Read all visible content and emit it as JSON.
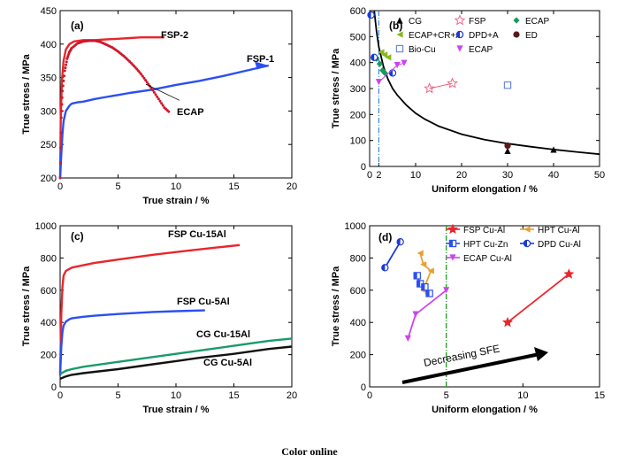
{
  "caption": "Color online",
  "chart_data": [
    {
      "type": "line",
      "panel_label": "(a)",
      "xlabel": "True strain / %",
      "ylabel": "True stress / MPa",
      "xlim": [
        0,
        20
      ],
      "ylim": [
        200,
        450
      ],
      "xticks": [
        0,
        5,
        10,
        15,
        20
      ],
      "yticks": [
        200,
        250,
        300,
        350,
        400,
        450
      ],
      "series": [
        {
          "name": "FSP-2",
          "color": "#e8262c",
          "style": "line",
          "x": [
            0,
            0.05,
            0.15,
            0.3,
            0.5,
            0.8,
            1.2,
            1.6,
            2,
            2.5,
            3,
            4,
            5,
            6,
            7,
            8,
            9
          ],
          "y": [
            200,
            290,
            345,
            375,
            392,
            400,
            404,
            405,
            406,
            406,
            406,
            407,
            408,
            409,
            410,
            410,
            410
          ]
        },
        {
          "name": "FSP-1",
          "color": "#2b4ff2",
          "style": "line",
          "x": [
            0,
            0.1,
            0.2,
            0.3,
            0.5,
            0.8,
            1,
            1.5,
            2,
            3,
            4,
            5,
            6,
            8,
            10,
            12,
            14,
            16,
            18
          ],
          "y": [
            200,
            235,
            265,
            285,
            300,
            308,
            311,
            313,
            314,
            318,
            321,
            324,
            327,
            332,
            339,
            345,
            352,
            360,
            368
          ]
        },
        {
          "name": "ECAP",
          "color": "#d0162a",
          "style": "dotted",
          "x": [
            0,
            0.1,
            0.2,
            0.4,
            0.6,
            0.8,
            1,
            1.5,
            2,
            2.5,
            3,
            3.5,
            4,
            4.5,
            5,
            5.5,
            6,
            6.5,
            7,
            7.5,
            8,
            8.5,
            9,
            9.5
          ],
          "y": [
            200,
            290,
            330,
            360,
            378,
            388,
            394,
            401,
            404,
            405,
            405,
            403,
            399,
            395,
            389,
            382,
            374,
            365,
            355,
            343,
            331,
            318,
            305,
            297
          ]
        }
      ],
      "annotations": [
        "FSP-2",
        "FSP-1",
        "ECAP"
      ]
    },
    {
      "type": "scatter",
      "panel_label": "(b)",
      "xlabel": "Uniform elongation / %",
      "ylabel": "True stress / MPa",
      "xlim": [
        0,
        50
      ],
      "ylim": [
        0,
        600
      ],
      "xticks": [
        0,
        2,
        10,
        20,
        30,
        40,
        50
      ],
      "yticks": [
        0,
        100,
        200,
        300,
        400,
        500,
        600
      ],
      "legend": [
        "CG",
        "FSP",
        "ECAP",
        "ECAP+CR+A",
        "DPD+A",
        "ED",
        "Bio-Cu",
        "ECAP"
      ],
      "series": [
        {
          "name": "CG",
          "marker": "triangle",
          "color": "#000000",
          "x": [
            30,
            40
          ],
          "y": [
            60,
            65
          ]
        },
        {
          "name": "FSP",
          "marker": "star-open",
          "color": "#ee6688",
          "x": [
            13,
            18
          ],
          "y": [
            300,
            320
          ]
        },
        {
          "name": "ECAP",
          "marker": "diamond",
          "color": "#1a9a5a",
          "x": [
            1.5,
            2.2,
            2.8,
            3.3
          ],
          "y": [
            415,
            395,
            370,
            360
          ]
        },
        {
          "name": "ECAP+CR+A",
          "marker": "triangle-left",
          "color": "#88b820",
          "x": [
            2.5,
            3.2,
            4
          ],
          "y": [
            440,
            430,
            420
          ]
        },
        {
          "name": "DPD+A",
          "marker": "circle-half",
          "color": "#1a3ad8",
          "x": [
            0.3,
            1,
            5
          ],
          "y": [
            583,
            420,
            360
          ]
        },
        {
          "name": "ED",
          "marker": "circle",
          "color": "#5a1a1a",
          "x": [
            30
          ],
          "y": [
            80
          ]
        },
        {
          "name": "Bio-Cu",
          "marker": "square-open",
          "color": "#6a8ad8",
          "x": [
            30
          ],
          "y": [
            313
          ]
        },
        {
          "name": "ECAP",
          "marker": "triangle-down",
          "color": "#cc44ee",
          "x": [
            2,
            6,
            7.5
          ],
          "y": [
            325,
            390,
            398
          ]
        }
      ],
      "fit_curve": {
        "color": "#000000",
        "x": [
          1,
          1.5,
          2,
          3,
          4,
          5,
          6,
          8,
          10,
          12,
          15,
          20,
          25,
          30,
          35,
          40,
          45,
          50
        ],
        "y": [
          640,
          520,
          460,
          385,
          335,
          300,
          275,
          236,
          205,
          182,
          155,
          124,
          103,
          88,
          76,
          65,
          56,
          47
        ]
      },
      "vline": {
        "x": 2,
        "color": "#3a8ad8"
      }
    },
    {
      "type": "line",
      "panel_label": "(c)",
      "xlabel": "True strain / %",
      "ylabel": "True stress / MPa",
      "xlim": [
        0,
        20
      ],
      "ylim": [
        0,
        1000
      ],
      "xticks": [
        0,
        5,
        10,
        15,
        20
      ],
      "yticks": [
        0,
        200,
        400,
        600,
        800,
        1000
      ],
      "series": [
        {
          "name": "FSP Cu-15Al",
          "color": "#e8262c",
          "x": [
            0,
            0.1,
            0.2,
            0.3,
            0.5,
            1,
            2,
            3,
            5,
            8,
            11,
            13.5,
            15.5
          ],
          "y": [
            80,
            450,
            620,
            690,
            720,
            740,
            755,
            770,
            790,
            820,
            845,
            865,
            880
          ]
        },
        {
          "name": "FSP Cu-5Al",
          "color": "#2b4ff2",
          "x": [
            0,
            0.1,
            0.2,
            0.3,
            0.5,
            0.8,
            1,
            2,
            3,
            5,
            8,
            10,
            12.5
          ],
          "y": [
            70,
            250,
            340,
            380,
            405,
            420,
            425,
            435,
            442,
            452,
            465,
            470,
            475
          ]
        },
        {
          "name": "CG Cu-15Al",
          "color": "#1a9a6a",
          "x": [
            0,
            0.5,
            1,
            2,
            5,
            8,
            10,
            12,
            15,
            18,
            20
          ],
          "y": [
            80,
            100,
            110,
            125,
            155,
            185,
            205,
            225,
            255,
            285,
            300
          ]
        },
        {
          "name": "CG Cu-5Al",
          "color": "#111111",
          "x": [
            0,
            0.5,
            1,
            2,
            5,
            8,
            10,
            12,
            15,
            18,
            20
          ],
          "y": [
            50,
            65,
            75,
            85,
            110,
            140,
            160,
            180,
            205,
            235,
            250
          ]
        }
      ],
      "annotations": [
        "FSP Cu-15Al",
        "FSP Cu-5Al",
        "CG Cu-15Al",
        "CG Cu-5Al"
      ]
    },
    {
      "type": "scatter",
      "panel_label": "(d)",
      "xlabel": "Uniform elongation / %",
      "ylabel": "True stress / MPa",
      "xlim": [
        0,
        15
      ],
      "ylim": [
        0,
        1000
      ],
      "xticks": [
        0,
        5,
        10,
        15
      ],
      "yticks": [
        0,
        200,
        400,
        600,
        800,
        1000
      ],
      "legend": [
        "FSP Cu-Al",
        "HPT Cu-Al",
        "HPT Cu-Zn",
        "DPD Cu-Al",
        "ECAP Cu-Al"
      ],
      "series": [
        {
          "name": "FSP Cu-Al",
          "marker": "star",
          "color": "#e8262c",
          "x": [
            9,
            13
          ],
          "y": [
            400,
            700
          ]
        },
        {
          "name": "HPT Cu-Al",
          "marker": "triangle-left",
          "color": "#e8a030",
          "x": [
            3.3,
            3.5,
            4,
            3.5,
            3.8
          ],
          "y": [
            830,
            760,
            720,
            600,
            580
          ]
        },
        {
          "name": "HPT Cu-Zn",
          "marker": "square-half",
          "color": "#2b4ff2",
          "x": [
            3.1,
            3.3,
            3.6,
            3.9
          ],
          "y": [
            690,
            640,
            620,
            580
          ]
        },
        {
          "name": "DPD Cu-Al",
          "marker": "circle-half",
          "color": "#1a3ad8",
          "x": [
            1,
            2
          ],
          "y": [
            740,
            900
          ]
        },
        {
          "name": "ECAP Cu-Al",
          "marker": "triangle-down",
          "color": "#cc44ee",
          "x": [
            2.5,
            3,
            5
          ],
          "y": [
            300,
            450,
            600
          ]
        }
      ],
      "vline": {
        "x": 5,
        "color": "#2aa02a"
      },
      "arrow_label": "Decreasing SFE"
    }
  ]
}
